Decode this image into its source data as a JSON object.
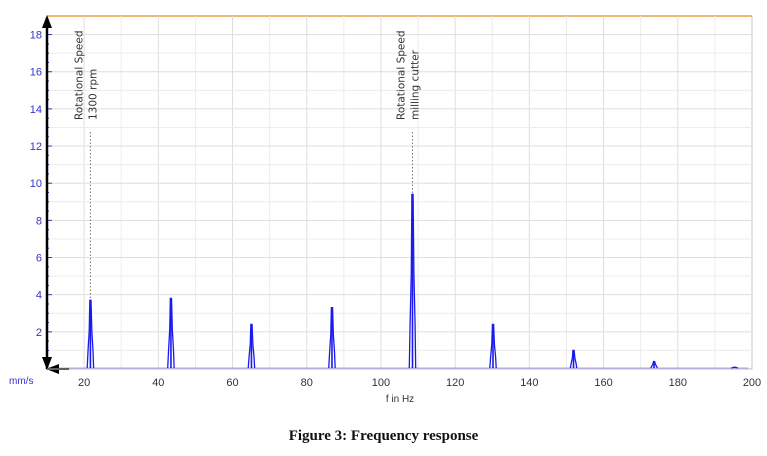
{
  "caption": "Figure 3: Frequency response",
  "chart_data": {
    "type": "line",
    "xlabel": "f in Hz",
    "ylabel": "mm/s",
    "xlim": [
      10,
      200
    ],
    "ylim": [
      0,
      19
    ],
    "x_ticks": [
      20,
      40,
      60,
      80,
      100,
      120,
      140,
      160,
      180,
      200
    ],
    "y_ticks": [
      2,
      4,
      6,
      8,
      10,
      12,
      14,
      16,
      18
    ],
    "grid": true,
    "series_color": "#1a1aee",
    "peaks": [
      {
        "x": 21.7,
        "y": 3.7
      },
      {
        "x": 43.4,
        "y": 3.8
      },
      {
        "x": 65.1,
        "y": 2.4
      },
      {
        "x": 86.8,
        "y": 3.3
      },
      {
        "x": 108.5,
        "y": 9.4
      },
      {
        "x": 130.2,
        "y": 2.4
      },
      {
        "x": 151.9,
        "y": 1.0
      },
      {
        "x": 173.6,
        "y": 0.4
      },
      {
        "x": 195.3,
        "y": 0.1
      }
    ],
    "annotations": [
      {
        "x": 21.7,
        "lines": [
          "Rotational Speed",
          "1300 rpm"
        ]
      },
      {
        "x": 108.5,
        "lines": [
          "Rotational Speed",
          "milling cutter"
        ]
      }
    ]
  }
}
